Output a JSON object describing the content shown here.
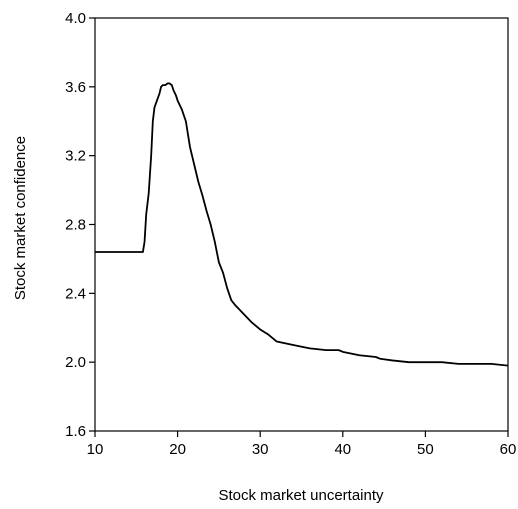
{
  "chart_data": {
    "type": "line",
    "xlabel": "Stock market uncertainty",
    "ylabel": "Stock market confidence",
    "xlim": [
      10,
      60
    ],
    "ylim": [
      1.6,
      4.0
    ],
    "xticks": [
      10,
      20,
      30,
      40,
      50,
      60
    ],
    "yticks": [
      1.6,
      2.0,
      2.4,
      2.8,
      3.2,
      3.6,
      4.0
    ],
    "xtick_labels": [
      "10",
      "20",
      "30",
      "40",
      "50",
      "60"
    ],
    "ytick_labels": [
      "1.6",
      "2.0",
      "2.4",
      "2.8",
      "3.2",
      "3.6",
      "4.0"
    ],
    "grid": false,
    "line_color": "#000000",
    "series": [
      {
        "x": [
          10,
          11,
          12,
          13,
          14,
          15,
          15.8,
          16.0,
          16.2,
          16.5,
          16.8,
          17.0,
          17.2,
          17.5,
          17.8,
          18.0,
          18.2,
          18.5,
          18.8,
          19.0,
          19.3,
          19.5,
          19.8,
          20.0,
          20.5,
          21.0,
          21.5,
          22.0,
          22.5,
          23.0,
          23.5,
          24.0,
          24.5,
          25.0,
          25.5,
          26.0,
          26.5,
          27.0,
          28.0,
          29.0,
          30.0,
          31.0,
          32.0,
          34.0,
          36.0,
          38.0,
          39.5,
          40.0,
          42.0,
          44.0,
          44.5,
          46.0,
          48.0,
          50.0,
          52.0,
          54.0,
          56.0,
          58.0,
          60.0
        ],
        "y": [
          2.64,
          2.64,
          2.64,
          2.64,
          2.64,
          2.64,
          2.64,
          2.7,
          2.86,
          2.98,
          3.2,
          3.4,
          3.48,
          3.52,
          3.56,
          3.6,
          3.61,
          3.61,
          3.62,
          3.62,
          3.61,
          3.58,
          3.55,
          3.52,
          3.47,
          3.4,
          3.25,
          3.15,
          3.05,
          2.97,
          2.88,
          2.8,
          2.7,
          2.58,
          2.52,
          2.43,
          2.36,
          2.33,
          2.28,
          2.23,
          2.19,
          2.16,
          2.12,
          2.1,
          2.08,
          2.07,
          2.07,
          2.06,
          2.04,
          2.03,
          2.02,
          2.01,
          2.0,
          2.0,
          2.0,
          1.99,
          1.99,
          1.99,
          1.98
        ]
      }
    ]
  }
}
